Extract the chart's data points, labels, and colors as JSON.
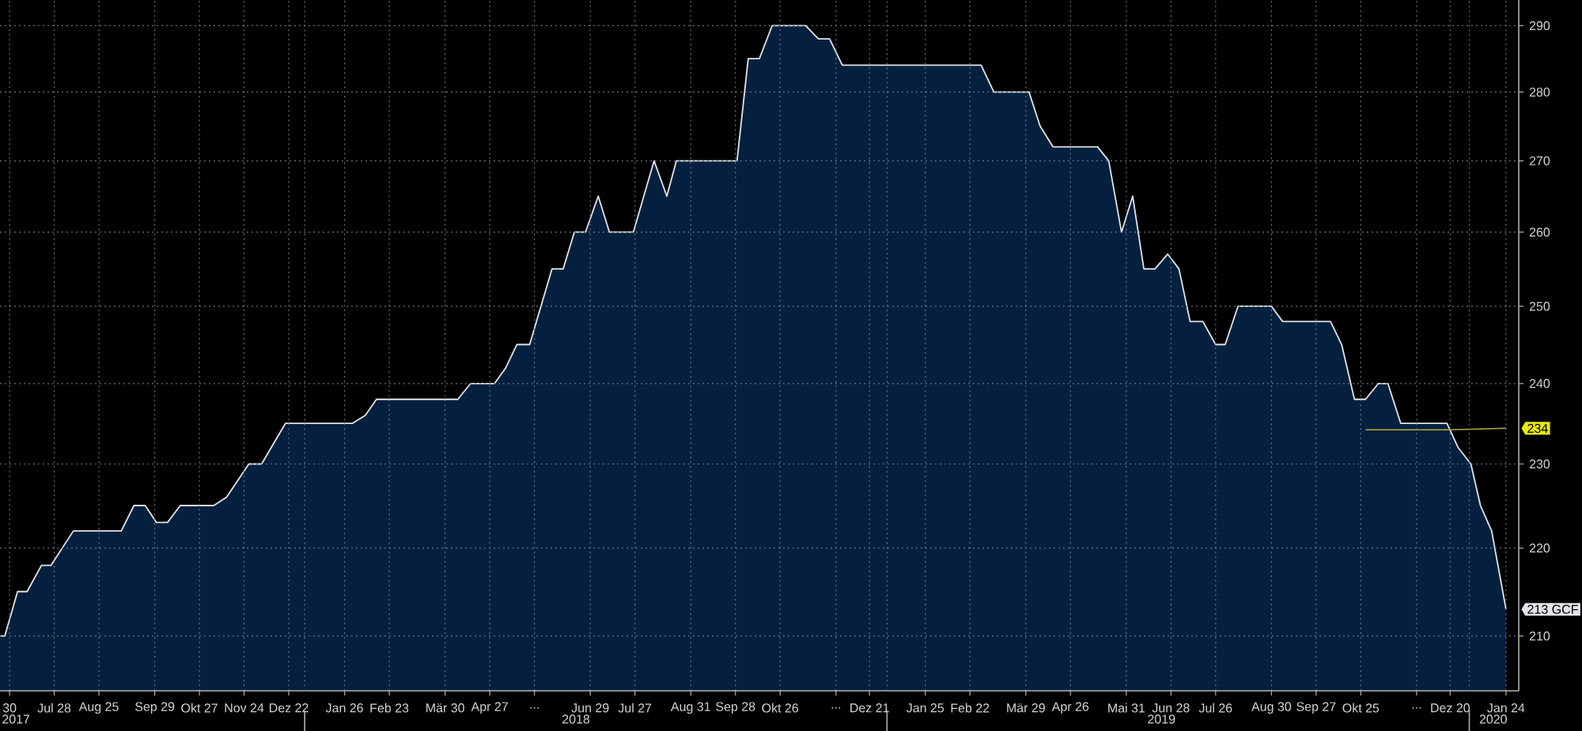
{
  "chart_data": {
    "type": "area",
    "xlim": [
      "2017-06-24",
      "2020-02-01"
    ],
    "xticks": [
      {
        "value": "2017-06-30",
        "label": "30"
      },
      {
        "value": "2017-07-28",
        "label": "Jul 28"
      },
      {
        "value": "2017-08-25",
        "label": "Aug 25"
      },
      {
        "value": "2017-09-29",
        "label": "Sep 29"
      },
      {
        "value": "2017-10-27",
        "label": "Okt 27"
      },
      {
        "value": "2017-11-24",
        "label": "Nov 24"
      },
      {
        "value": "2017-12-22",
        "label": "Dez 22"
      },
      {
        "value": "2018-01-26",
        "label": "Jan 26"
      },
      {
        "value": "2018-02-23",
        "label": "Feb 23"
      },
      {
        "value": "2018-03-30",
        "label": "Mär 30"
      },
      {
        "value": "2018-04-27",
        "label": "Apr 27"
      },
      {
        "value": "2018-05-25",
        "label": "..."
      },
      {
        "value": "2018-06-29",
        "label": "Jun 29"
      },
      {
        "value": "2018-07-27",
        "label": "Jul 27"
      },
      {
        "value": "2018-08-31",
        "label": "Aug 31"
      },
      {
        "value": "2018-09-28",
        "label": "Sep 28"
      },
      {
        "value": "2018-10-26",
        "label": "Okt 26"
      },
      {
        "value": "2018-11-30",
        "label": "..."
      },
      {
        "value": "2018-12-21",
        "label": "Dez 21"
      },
      {
        "value": "2019-01-25",
        "label": "Jan 25"
      },
      {
        "value": "2019-02-22",
        "label": "Feb 22"
      },
      {
        "value": "2019-03-29",
        "label": "Mär 29"
      },
      {
        "value": "2019-04-26",
        "label": "Apr 26"
      },
      {
        "value": "2019-05-31",
        "label": "Mai 31"
      },
      {
        "value": "2019-06-28",
        "label": "Jun 28"
      },
      {
        "value": "2019-07-26",
        "label": "Jul 26"
      },
      {
        "value": "2019-08-30",
        "label": "Aug 30"
      },
      {
        "value": "2019-09-27",
        "label": "Sep 27"
      },
      {
        "value": "2019-10-25",
        "label": "Okt 25"
      },
      {
        "value": "2019-11-29",
        "label": "..."
      },
      {
        "value": "2019-12-20",
        "label": "Dez 20"
      },
      {
        "value": "2020-01-24",
        "label": "Jan 24"
      }
    ],
    "x2lim": [
      "2017-06-24",
      "2020-02-01"
    ],
    "x2ticks": [
      {
        "value": "2017-07-04",
        "label": "2017"
      },
      {
        "value": "2018-01-01",
        "label": null
      },
      {
        "value": "2018-06-20",
        "label": "2018"
      },
      {
        "value": "2019-01-01",
        "label": null
      },
      {
        "value": "2019-06-22",
        "label": "2019"
      },
      {
        "value": "2020-01-01",
        "label": null
      },
      {
        "value": "2020-01-16",
        "label": "2020"
      }
    ],
    "ylim": [
      204,
      294
    ],
    "yticks": [
      210,
      220,
      230,
      240,
      250,
      260,
      270,
      280,
      290
    ],
    "log": "y",
    "grid": true,
    "series": [
      {
        "color": "#05203f",
        "x": [
          "2017-06-24",
          "2017-06-27",
          "2017-07-05",
          "2017-07-11",
          "2017-07-20",
          "2017-07-26",
          "2017-08-09",
          "2017-09-08",
          "2017-09-16",
          "2017-09-23",
          "2017-09-30",
          "2017-10-07",
          "2017-10-15",
          "2017-11-05",
          "2017-11-13",
          "2017-11-27",
          "2017-12-05",
          "2017-12-11",
          "2017-12-20",
          "2018-01-31",
          "2018-02-08",
          "2018-02-15",
          "2018-04-07",
          "2018-04-15",
          "2018-04-30",
          "2018-05-07",
          "2018-05-14",
          "2018-05-22",
          "2018-06-05",
          "2018-06-12",
          "2018-06-19",
          "2018-06-26",
          "2018-07-04",
          "2018-07-11",
          "2018-07-26",
          "2018-08-08",
          "2018-08-16",
          "2018-08-22",
          "2018-09-29",
          "2018-10-06",
          "2018-10-13",
          "2018-10-21",
          "2018-11-11",
          "2018-11-19",
          "2018-11-26",
          "2018-12-04",
          "2019-03-01",
          "2019-03-09",
          "2019-03-31",
          "2019-04-07",
          "2019-04-15",
          "2019-05-13",
          "2019-05-20",
          "2019-05-28",
          "2019-06-04",
          "2019-06-11",
          "2019-06-18",
          "2019-06-26",
          "2019-07-03",
          "2019-07-10",
          "2019-07-18",
          "2019-07-26",
          "2019-08-01",
          "2019-08-09",
          "2019-08-30",
          "2019-09-06",
          "2019-10-06",
          "2019-10-13",
          "2019-10-21",
          "2019-10-28",
          "2019-11-05",
          "2019-11-11",
          "2019-11-19",
          "2019-12-18",
          "2019-12-25",
          "2020-01-02",
          "2020-01-08",
          "2020-01-15",
          "2020-01-24"
        ],
        "values": [
          210,
          210,
          215,
          215,
          218,
          218,
          222,
          222,
          225,
          225,
          223,
          223,
          225,
          225,
          226,
          230,
          230,
          232,
          235,
          235,
          236,
          238,
          238,
          240,
          240,
          242,
          245,
          245,
          255,
          255,
          260,
          260,
          265,
          260,
          260,
          270,
          265,
          270,
          270,
          285,
          285,
          290,
          290,
          288,
          288,
          284,
          284,
          280,
          280,
          275,
          272,
          272,
          270,
          260,
          265,
          255,
          255,
          257,
          255,
          248,
          248,
          245,
          245,
          250,
          250,
          248,
          248,
          245,
          238,
          238,
          240,
          240,
          235,
          235,
          232,
          230,
          225,
          222,
          213
        ],
        "value_labels": [
          null,
          null,
          null,
          null,
          null,
          null,
          null,
          null,
          null,
          null,
          null,
          null,
          null,
          null,
          null,
          null,
          null,
          null,
          null,
          null,
          null,
          null,
          null,
          null,
          null,
          null,
          null,
          null,
          null,
          null,
          null,
          null,
          null,
          null,
          null,
          null,
          null,
          null,
          null,
          null,
          null,
          null,
          null,
          null,
          null,
          null,
          null,
          null,
          null,
          null,
          null,
          null,
          null,
          null,
          null,
          null,
          null,
          null,
          null,
          null,
          null,
          null,
          null,
          null,
          null,
          null,
          null,
          null,
          null,
          null,
          null,
          null,
          null,
          null,
          null,
          null,
          null,
          null,
          "213 GCF"
        ]
      },
      {
        "type": "line",
        "color": "#b4ae3c",
        "x": [
          "2019-10-28",
          "2019-12-18",
          "2020-01-08",
          "2020-01-24"
        ],
        "values": [
          234.2,
          234.2,
          234.3,
          234.4
        ],
        "value_labels": [
          null,
          null,
          null,
          "234"
        ]
      }
    ]
  }
}
